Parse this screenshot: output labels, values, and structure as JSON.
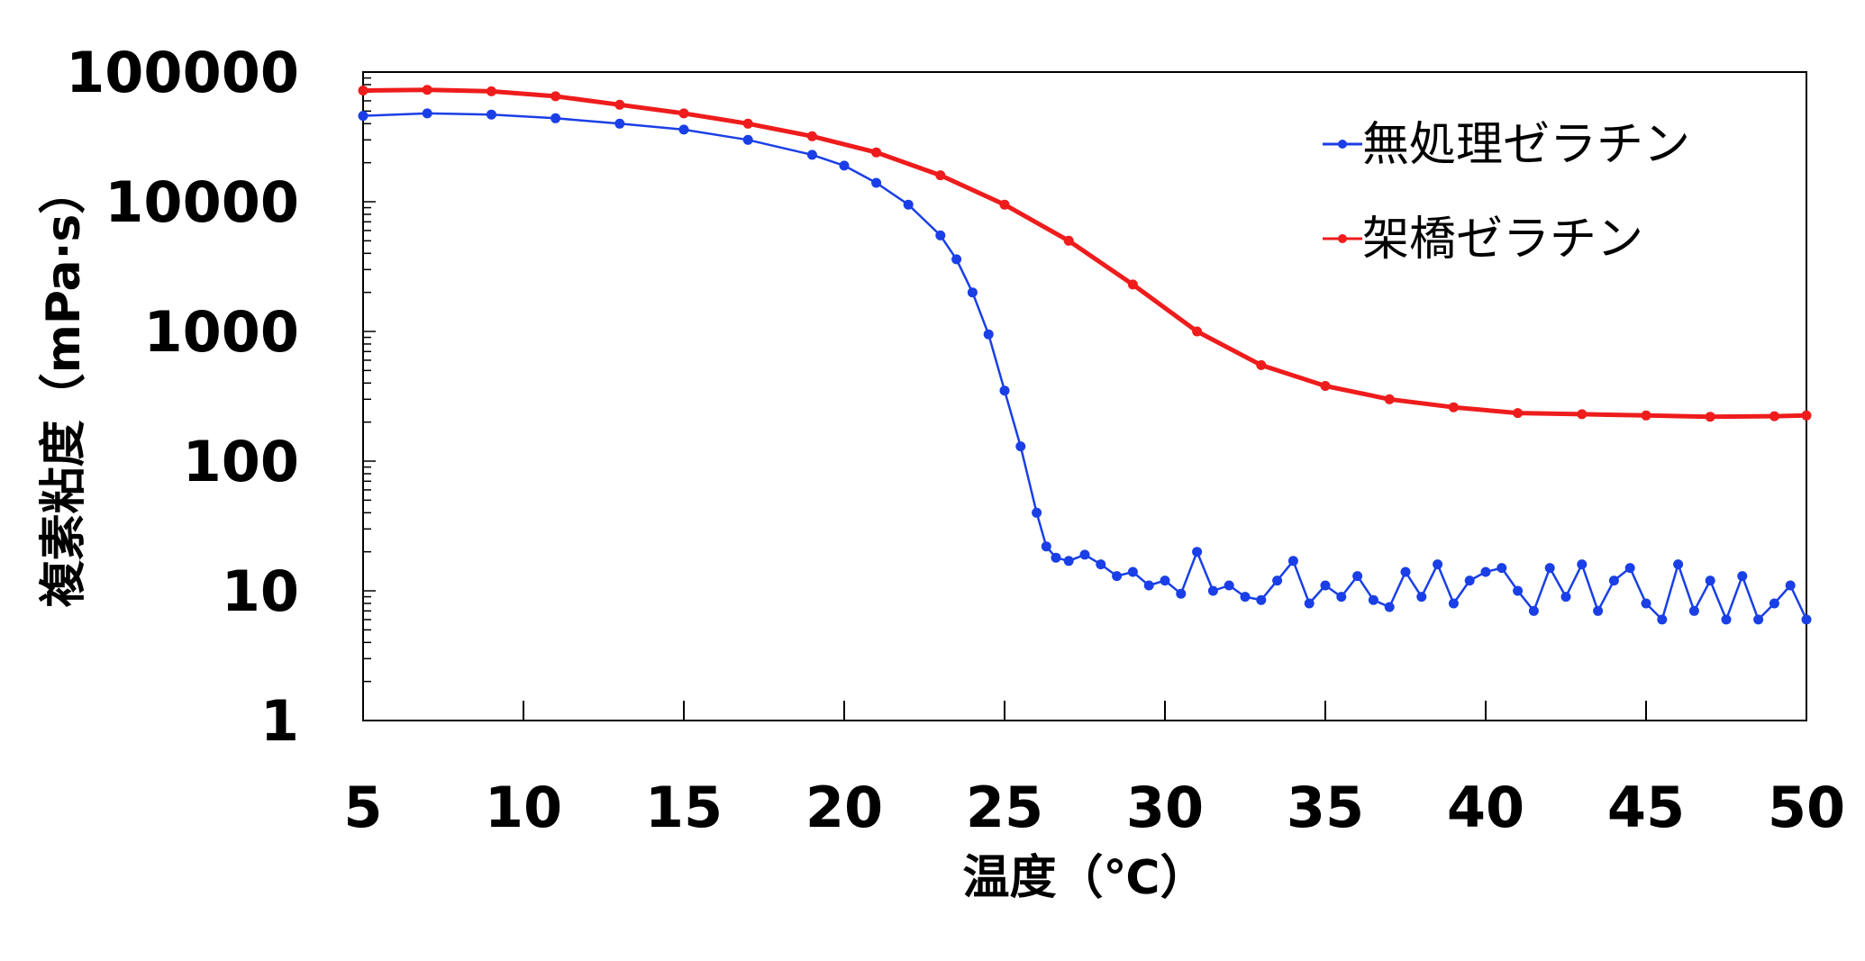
{
  "chart_data": {
    "type": "line",
    "title": "",
    "xlabel": "温度（℃）",
    "ylabel": "複素粘度（mPa·s）",
    "xlim": [
      5,
      50
    ],
    "ylim": [
      1,
      100000
    ],
    "y_scale": "log",
    "x_ticks": [
      "5",
      "10",
      "15",
      "20",
      "25",
      "30",
      "35",
      "40",
      "45",
      "50"
    ],
    "y_ticks": [
      "1",
      "10",
      "100",
      "1000",
      "10000",
      "100000"
    ],
    "grid": false,
    "legend_position": "top-right",
    "series": [
      {
        "name": "無処理ゼラチン",
        "color": "#1a3fe6",
        "marker": "circle",
        "x": [
          5,
          7,
          9,
          11,
          13,
          15,
          17,
          19,
          20,
          21,
          22,
          23,
          23.5,
          24,
          24.5,
          25,
          25.5,
          26,
          26.3,
          26.6,
          27,
          27.5,
          28,
          28.5,
          29,
          29.5,
          30,
          30.5,
          31,
          31.5,
          32,
          32.5,
          33,
          33.5,
          34,
          34.5,
          35,
          35.5,
          36,
          36.5,
          37,
          37.5,
          38,
          38.5,
          39,
          39.5,
          40,
          40.5,
          41,
          41.5,
          42,
          42.5,
          43,
          43.5,
          44,
          44.5,
          45,
          45.5,
          46,
          46.5,
          47,
          47.5,
          48,
          48.5,
          49,
          49.5,
          50
        ],
        "y": [
          46000,
          48000,
          47000,
          44000,
          40000,
          36000,
          30000,
          23000,
          19000,
          14000,
          9500,
          5500,
          3600,
          2000,
          950,
          350,
          130,
          40,
          22,
          18,
          17,
          19,
          16,
          13,
          14,
          11,
          12,
          9.5,
          20,
          10,
          11,
          9,
          8.5,
          12,
          17,
          8,
          11,
          9,
          13,
          8.5,
          7.5,
          14,
          9,
          16,
          8,
          12,
          14,
          15,
          10,
          7,
          15,
          9,
          16,
          7,
          12,
          15,
          8,
          6,
          16,
          7,
          12,
          6,
          13,
          6,
          8,
          11,
          6
        ]
      },
      {
        "name": "架橋ゼラチン",
        "color": "#ee1c1c",
        "marker": "circle",
        "x": [
          5,
          7,
          9,
          11,
          13,
          15,
          17,
          19,
          21,
          23,
          25,
          27,
          29,
          31,
          33,
          35,
          37,
          39,
          41,
          43,
          45,
          47,
          49,
          50
        ],
        "y": [
          72000,
          73000,
          71000,
          65000,
          56000,
          48000,
          40000,
          32000,
          24000,
          16000,
          9500,
          5000,
          2300,
          1000,
          550,
          380,
          300,
          260,
          235,
          230,
          225,
          220,
          222,
          225
        ]
      }
    ]
  }
}
